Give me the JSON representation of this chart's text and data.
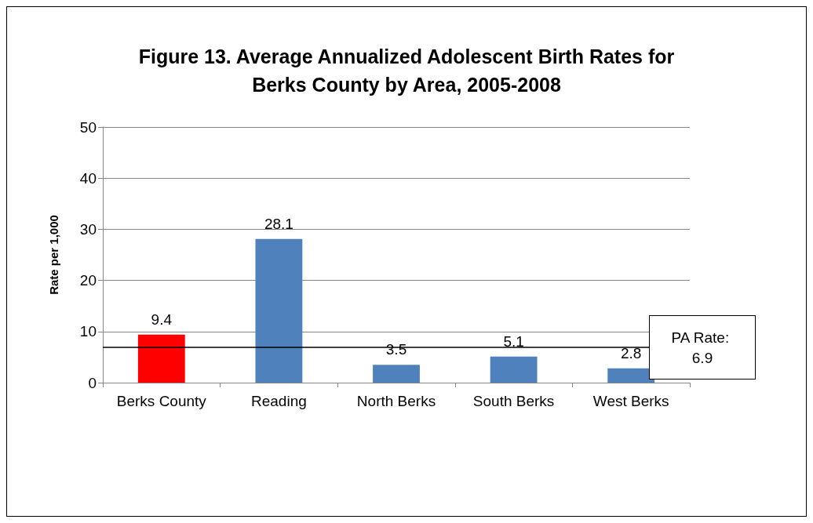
{
  "chart_data": {
    "type": "bar",
    "title": "Figure 13. Average Annualized Adolescent Birth Rates for\nBerks County by Area, 2005-2008",
    "ylabel": "Rate per 1,000",
    "categories": [
      "Berks County",
      "Reading",
      "North Berks",
      "South Berks",
      "West Berks"
    ],
    "values": [
      9.4,
      28.1,
      3.5,
      5.1,
      2.8
    ],
    "colors": [
      "#ff0000",
      "#4f81bd",
      "#4f81bd",
      "#4f81bd",
      "#4f81bd"
    ],
    "ylim": [
      0,
      50
    ],
    "yticks": [
      0,
      10,
      20,
      30,
      40,
      50
    ],
    "grid": "y",
    "data_labels": true,
    "ref_lines": [
      {
        "axis": "y",
        "value": 6.9,
        "label": "PA Rate: 6.9",
        "color": "#000000",
        "line_style": "solid"
      }
    ]
  }
}
